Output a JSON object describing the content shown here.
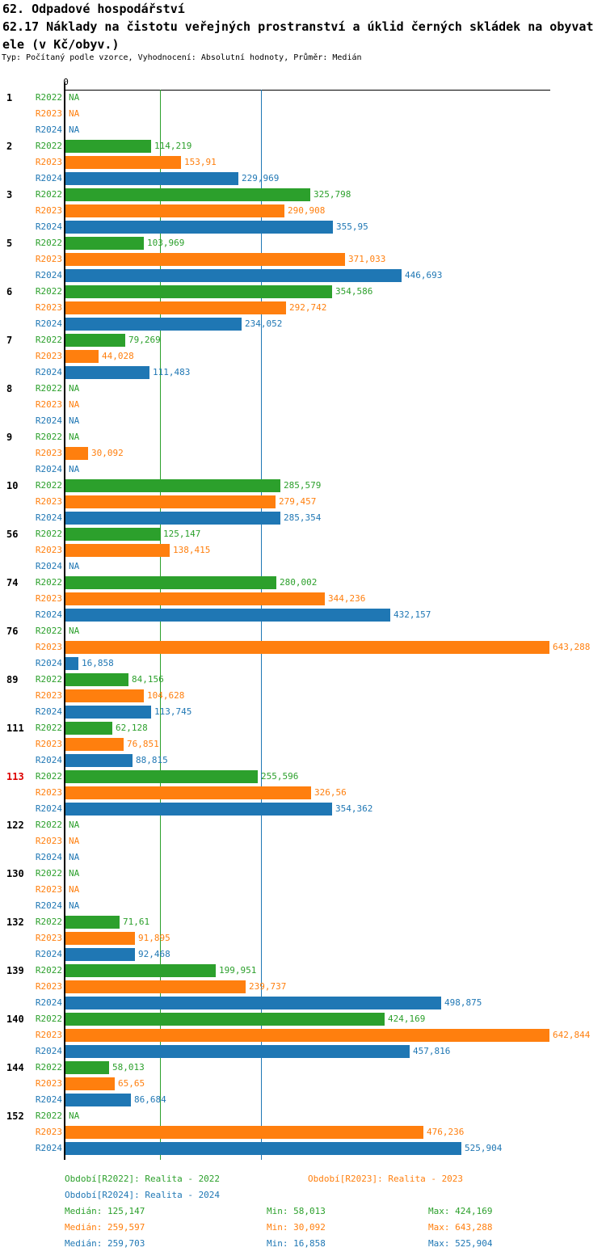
{
  "header": {
    "title_line1": "62. Odpadové hospodářství",
    "title_line2": "62.17 Náklady na čistotu veřejných prostranství a úklid černých skládek na obyvat",
    "title_line3": "ele (v Kč/obyv.)",
    "subtitle": "Typ: Počítaný podle vzorce, Vyhodnocení: Absolutní hodnoty, Průměr: Medián"
  },
  "chart_data": {
    "type": "bar",
    "orientation": "horizontal",
    "unit": "Kč/obyv.",
    "na_text": "NA",
    "x_axis": {
      "zero_label": "0"
    },
    "series": [
      "R2022",
      "R2023",
      "R2024"
    ],
    "colors": {
      "R2022": "#2ca02c",
      "R2023": "#ff7f0e",
      "R2024": "#1f77b4",
      "highlight_id": "#dd0000",
      "id": "#000000"
    },
    "median_lines": [
      {
        "series": "R2022",
        "value": 125.147
      },
      {
        "series": "R2023",
        "value": 259.597
      },
      {
        "series": "R2024",
        "value": 259.703
      }
    ],
    "groups": [
      {
        "id": "1",
        "highlight": false,
        "R2022": "NA",
        "R2023": "NA",
        "R2024": "NA"
      },
      {
        "id": "2",
        "highlight": false,
        "R2022": "114,219",
        "R2023": "153,91",
        "R2024": "229,969"
      },
      {
        "id": "3",
        "highlight": false,
        "R2022": "325,798",
        "R2023": "290,908",
        "R2024": "355,95"
      },
      {
        "id": "5",
        "highlight": false,
        "R2022": "103,969",
        "R2023": "371,033",
        "R2024": "446,693"
      },
      {
        "id": "6",
        "highlight": false,
        "R2022": "354,586",
        "R2023": "292,742",
        "R2024": "234,052"
      },
      {
        "id": "7",
        "highlight": false,
        "R2022": "79,269",
        "R2023": "44,028",
        "R2024": "111,483"
      },
      {
        "id": "8",
        "highlight": false,
        "R2022": "NA",
        "R2023": "NA",
        "R2024": "NA"
      },
      {
        "id": "9",
        "highlight": false,
        "R2022": "NA",
        "R2023": "30,092",
        "R2024": "NA"
      },
      {
        "id": "10",
        "highlight": false,
        "R2022": "285,579",
        "R2023": "279,457",
        "R2024": "285,354"
      },
      {
        "id": "56",
        "highlight": false,
        "R2022": "125,147",
        "R2023": "138,415",
        "R2024": "NA"
      },
      {
        "id": "74",
        "highlight": false,
        "R2022": "280,002",
        "R2023": "344,236",
        "R2024": "432,157"
      },
      {
        "id": "76",
        "highlight": false,
        "R2022": "NA",
        "R2023": "643,288",
        "R2024": "16,858"
      },
      {
        "id": "89",
        "highlight": false,
        "R2022": "84,156",
        "R2023": "104,628",
        "R2024": "113,745"
      },
      {
        "id": "111",
        "highlight": false,
        "R2022": "62,128",
        "R2023": "76,851",
        "R2024": "88,815"
      },
      {
        "id": "113",
        "highlight": true,
        "R2022": "255,596",
        "R2023": "326,56",
        "R2024": "354,362"
      },
      {
        "id": "122",
        "highlight": false,
        "R2022": "NA",
        "R2023": "NA",
        "R2024": "NA"
      },
      {
        "id": "130",
        "highlight": false,
        "R2022": "NA",
        "R2023": "NA",
        "R2024": "NA"
      },
      {
        "id": "132",
        "highlight": false,
        "R2022": "71,61",
        "R2023": "91,895",
        "R2024": "92,468"
      },
      {
        "id": "139",
        "highlight": false,
        "R2022": "199,951",
        "R2023": "239,737",
        "R2024": "498,875"
      },
      {
        "id": "140",
        "highlight": false,
        "R2022": "424,169",
        "R2023": "642,844",
        "R2024": "457,816"
      },
      {
        "id": "144",
        "highlight": false,
        "R2022": "58,013",
        "R2023": "65,65",
        "R2024": "86,684"
      },
      {
        "id": "152",
        "highlight": false,
        "R2022": "NA",
        "R2023": "476,236",
        "R2024": "525,904"
      }
    ]
  },
  "legend": [
    {
      "series": "R2022",
      "label": "Období[R2022]: Realita - 2022"
    },
    {
      "series": "R2023",
      "label": "Období[R2023]: Realita - 2023"
    },
    {
      "series": "R2024",
      "label": "Období[R2024]: Realita - 2024"
    }
  ],
  "stats": [
    {
      "series": "R2022",
      "median": "Medián: 125,147",
      "min": "Min: 58,013",
      "max": "Max: 424,169"
    },
    {
      "series": "R2023",
      "median": "Medián: 259,597",
      "min": "Min: 30,092",
      "max": "Max: 643,288"
    },
    {
      "series": "R2024",
      "median": "Medián: 259,703",
      "min": "Min: 16,858",
      "max": "Max: 525,904"
    }
  ]
}
